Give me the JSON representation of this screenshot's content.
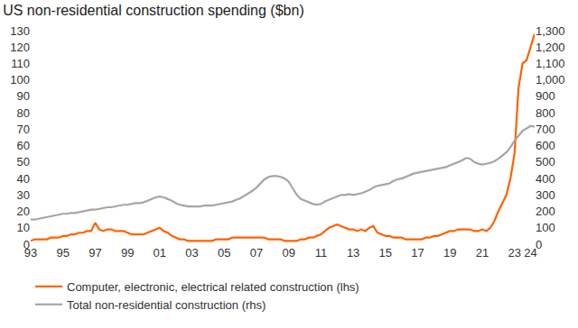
{
  "chart_data": {
    "type": "line",
    "title": "US non-residential construction spending ($bn)",
    "categories": [
      "93",
      null,
      null,
      null,
      null,
      null,
      null,
      null,
      "95",
      null,
      null,
      null,
      null,
      null,
      null,
      null,
      "97",
      null,
      null,
      null,
      null,
      null,
      null,
      null,
      "99",
      null,
      null,
      null,
      null,
      null,
      null,
      null,
      "01",
      null,
      null,
      null,
      null,
      null,
      null,
      null,
      "03",
      null,
      null,
      null,
      null,
      null,
      null,
      null,
      "05",
      null,
      null,
      null,
      null,
      null,
      null,
      null,
      "07",
      null,
      null,
      null,
      null,
      null,
      null,
      null,
      "09",
      null,
      null,
      null,
      null,
      null,
      null,
      null,
      "11",
      null,
      null,
      null,
      null,
      null,
      null,
      null,
      "13",
      null,
      null,
      null,
      null,
      null,
      null,
      null,
      "15",
      null,
      null,
      null,
      null,
      null,
      null,
      null,
      "17",
      null,
      null,
      null,
      null,
      null,
      null,
      null,
      "19",
      null,
      null,
      null,
      null,
      null,
      null,
      null,
      "21",
      null,
      null,
      null,
      null,
      null,
      null,
      null,
      "23",
      null,
      null,
      null,
      "24",
      null
    ],
    "series": [
      {
        "name": "Computer, electronic, electrical related construction (lhs)",
        "color": "#ff6200",
        "axis": "y",
        "values": [
          2,
          3,
          3,
          3,
          3,
          4,
          4,
          4,
          5,
          5,
          6,
          6,
          7,
          7,
          8,
          8,
          13,
          9,
          8,
          9,
          9,
          8,
          8,
          8,
          7,
          6,
          6,
          6,
          6,
          7,
          8,
          9,
          10,
          8,
          7,
          5,
          4,
          3,
          3,
          2,
          2,
          2,
          2,
          2,
          2,
          2,
          3,
          3,
          3,
          3,
          4,
          4,
          4,
          4,
          4,
          4,
          4,
          4,
          4,
          3,
          3,
          3,
          3,
          2,
          2,
          2,
          2,
          3,
          3,
          4,
          4,
          5,
          6,
          8,
          10,
          11,
          12,
          11,
          10,
          9,
          9,
          8,
          9,
          8,
          10,
          11,
          7,
          6,
          5,
          5,
          4,
          4,
          4,
          3,
          3,
          3,
          3,
          3,
          4,
          4,
          5,
          5,
          6,
          7,
          8,
          8,
          9,
          9,
          9,
          9,
          8,
          8,
          9,
          8,
          10,
          14,
          20,
          25,
          30,
          40,
          55,
          95,
          110,
          112,
          120,
          128
        ]
      },
      {
        "name": "Total non-residential construction (rhs)",
        "color": "#a6a6a6",
        "axis": "y2",
        "values": [
          150,
          150,
          155,
          160,
          165,
          170,
          175,
          180,
          185,
          185,
          190,
          190,
          195,
          200,
          205,
          210,
          210,
          215,
          220,
          225,
          225,
          230,
          235,
          240,
          240,
          245,
          250,
          250,
          255,
          265,
          275,
          285,
          290,
          285,
          275,
          265,
          250,
          240,
          235,
          230,
          230,
          230,
          230,
          235,
          235,
          235,
          240,
          245,
          250,
          255,
          260,
          270,
          280,
          295,
          310,
          325,
          345,
          370,
          395,
          410,
          415,
          415,
          410,
          400,
          380,
          340,
          300,
          275,
          265,
          255,
          245,
          240,
          245,
          260,
          270,
          280,
          290,
          300,
          300,
          305,
          300,
          305,
          310,
          320,
          330,
          345,
          355,
          360,
          365,
          370,
          385,
          395,
          400,
          410,
          420,
          430,
          435,
          440,
          445,
          450,
          455,
          460,
          465,
          470,
          480,
          490,
          500,
          510,
          525,
          520,
          500,
          490,
          485,
          490,
          495,
          505,
          520,
          540,
          560,
          590,
          630,
          660,
          690,
          705,
          720,
          715
        ]
      }
    ],
    "ylim": [
      0,
      130
    ],
    "yticks": [
      0,
      10,
      20,
      30,
      40,
      50,
      60,
      70,
      80,
      90,
      100,
      110,
      120,
      130
    ],
    "y2lim": [
      0,
      1300
    ],
    "y2ticks": [
      0,
      100,
      200,
      300,
      400,
      500,
      600,
      700,
      800,
      900,
      {
        "value": 1000,
        "label": "1,000"
      },
      {
        "value": 1100,
        "label": "1,100"
      },
      {
        "value": 1200,
        "label": "1,200"
      },
      {
        "value": 1300,
        "label": "1,300"
      }
    ],
    "grid": false,
    "legend": "bottom"
  }
}
